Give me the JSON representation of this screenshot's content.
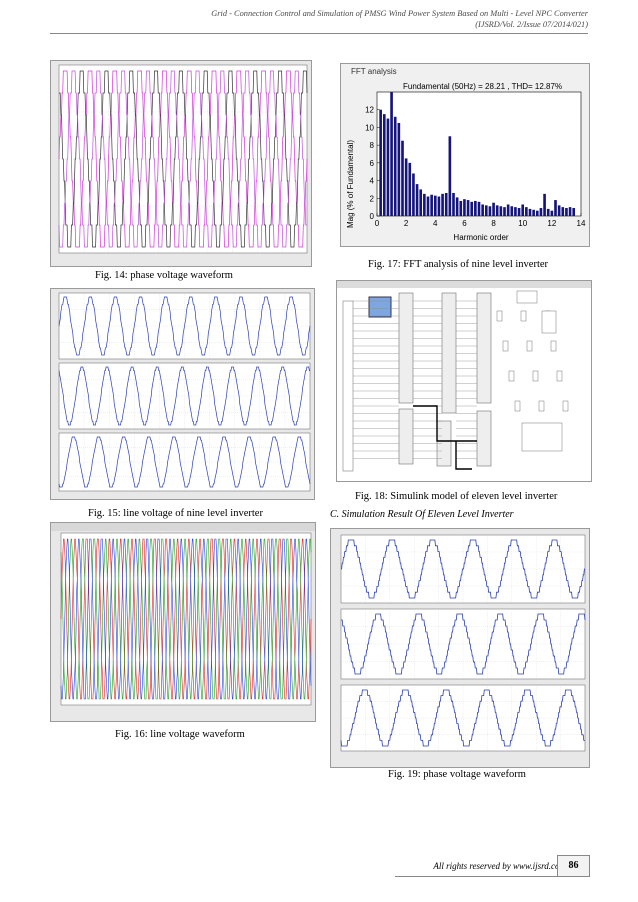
{
  "header": {
    "line1": "Grid - Connection Control and Simulation of PMSG Wind Power System Based on Multi - Level NPC Converter",
    "line2": "(IJSRD/Vol. 2/Issue 07/2014/021)"
  },
  "figures": {
    "fig14": "Fig. 14: phase voltage waveform",
    "fig15": "Fig. 15: line voltage of nine level inverter",
    "fig16": "Fig. 16: line voltage waveform",
    "fig17": "Fig. 17:  FFT analysis of nine level inverter",
    "fig18": "Fig. 18: Simulink model of eleven level inverter",
    "fig19": "Fig. 19: phase voltage waveform"
  },
  "section": "C.   Simulation Result Of Eleven Level Inverter",
  "fft": {
    "panel_title": "FFT analysis",
    "annotation": "Fundamental (50Hz) = 28.21 , THD= 12.87%",
    "ylabel": "Mag (% of Fundamental)",
    "xlabel": "Harmonic order",
    "colors": {
      "bar": "#14147a"
    }
  },
  "chart_data": {
    "type": "bar",
    "title": "FFT analysis",
    "xlabel": "Harmonic order",
    "ylabel": "Mag (% of Fundamental)",
    "xlim": [
      0,
      14
    ],
    "ylim": [
      0,
      14
    ],
    "xticks": [
      0,
      2,
      4,
      6,
      8,
      10,
      12,
      14
    ],
    "yticks": [
      0,
      2,
      4,
      6,
      8,
      10,
      12
    ],
    "x": [
      0.25,
      0.5,
      0.75,
      1.0,
      1.25,
      1.5,
      1.75,
      2.0,
      2.25,
      2.5,
      2.75,
      3.0,
      3.25,
      3.5,
      3.75,
      4.0,
      4.25,
      4.5,
      4.75,
      5.0,
      5.25,
      5.5,
      5.75,
      6.0,
      6.25,
      6.5,
      6.75,
      7.0,
      7.25,
      7.5,
      7.75,
      8.0,
      8.25,
      8.5,
      8.75,
      9.0,
      9.25,
      9.5,
      9.75,
      10.0,
      10.25,
      10.5,
      10.75,
      11.0,
      11.25,
      11.5,
      11.75,
      12.0,
      12.25,
      12.5,
      12.75,
      13.0,
      13.25,
      13.5
    ],
    "values": [
      12.0,
      11.5,
      11.0,
      14.0,
      11.2,
      10.5,
      8.5,
      6.5,
      6.0,
      4.8,
      3.6,
      3.0,
      2.5,
      2.2,
      2.4,
      2.3,
      2.2,
      2.5,
      2.6,
      9.0,
      2.6,
      2.1,
      1.7,
      1.9,
      1.8,
      1.6,
      1.7,
      1.6,
      1.3,
      1.2,
      1.1,
      1.5,
      1.2,
      1.1,
      1.0,
      1.3,
      1.1,
      1.0,
      0.9,
      1.3,
      1.0,
      0.8,
      0.7,
      0.6,
      0.9,
      2.5,
      0.8,
      0.6,
      1.8,
      1.2,
      1.0,
      0.9,
      1.0,
      0.9
    ]
  },
  "footer": {
    "text": "All rights reserved by www.ijsrd.com",
    "page": "86"
  }
}
